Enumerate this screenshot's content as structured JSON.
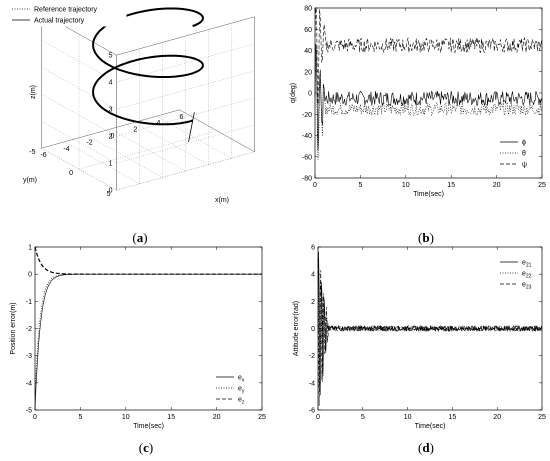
{
  "chart_data": [
    {
      "id": "a",
      "type": "line3d",
      "caption_open": "(",
      "caption_letter": "a",
      "caption_close": ")",
      "xlabel": "x(m)",
      "ylabel": "y(m)",
      "zlabel": "z(m)",
      "xticks": [
        "-6",
        "-4",
        "-2",
        "0",
        "2",
        "4",
        "6"
      ],
      "yticks": [
        "-5",
        "0",
        "5"
      ],
      "zticks": [
        "0",
        "1",
        "2",
        "3",
        "4",
        "5"
      ],
      "legend": [
        "Reference trajectory",
        "Actual trajectory"
      ],
      "legend_position": "top-left",
      "grid": true,
      "series": [
        {
          "name": "Reference trajectory",
          "style": "dotted",
          "description_points": "helix radius 5, z 0 to 5"
        },
        {
          "name": "Actual trajectory",
          "style": "solid"
        }
      ]
    },
    {
      "id": "b",
      "type": "line",
      "caption_open": "(",
      "caption_letter": "b",
      "caption_close": ")",
      "xlabel": "Time(sec)",
      "ylabel": "q(deg)",
      "xlim": [
        0,
        25
      ],
      "ylim": [
        -80,
        80
      ],
      "xticks": [
        "0",
        "5",
        "10",
        "15",
        "20",
        "25"
      ],
      "yticks": [
        "80",
        "60",
        "40",
        "20",
        "0",
        "-20",
        "-40",
        "-60",
        "-80"
      ],
      "legend": [
        "ϕ",
        "θ",
        "ψ"
      ],
      "legend_position": "bottom-right",
      "series": [
        {
          "name": "ϕ",
          "style": "solid",
          "mean": -5,
          "noise": 7
        },
        {
          "name": "θ",
          "style": "dotted",
          "mean": -15,
          "noise": 6
        },
        {
          "name": "ψ",
          "style": "dashed",
          "mean": 45,
          "noise": 7
        }
      ]
    },
    {
      "id": "c",
      "type": "line",
      "caption_open": "(",
      "caption_letter": "c",
      "caption_close": ")",
      "xlabel": "Time(sec)",
      "ylabel": "Position error(m)",
      "xlim": [
        0,
        25
      ],
      "ylim": [
        -5,
        1
      ],
      "xticks": [
        "0",
        "5",
        "10",
        "15",
        "20",
        "25"
      ],
      "yticks": [
        "1",
        "0",
        "-1",
        "-2",
        "-3",
        "-4",
        "-5"
      ],
      "legend": [
        "e",
        "e",
        "e"
      ],
      "legend_sub": [
        "x",
        "y",
        "z"
      ],
      "legend_position": "bottom-right",
      "series": [
        {
          "name": "ex",
          "style": "solid",
          "start": -5,
          "tau": 0.6
        },
        {
          "name": "ey",
          "style": "dotted",
          "start": -4.5,
          "tau": 0.55
        },
        {
          "name": "ez",
          "style": "dashed",
          "start": 1,
          "tau": 0.7
        }
      ]
    },
    {
      "id": "d",
      "type": "line",
      "caption_open": "(",
      "caption_letter": "d",
      "caption_close": ")",
      "xlabel": "Time(sec)",
      "ylabel": "Attitude error(rad)",
      "xlim": [
        0,
        25
      ],
      "ylim": [
        -6,
        6
      ],
      "xticks": [
        "0",
        "5",
        "10",
        "15",
        "20",
        "25"
      ],
      "yticks": [
        "6",
        "4",
        "2",
        "0",
        "-2",
        "-4",
        "-6"
      ],
      "legend": [
        "e",
        "e",
        "e"
      ],
      "legend_sub": [
        "21",
        "22",
        "23"
      ],
      "legend_position": "top-right",
      "series": [
        {
          "name": "e21",
          "style": "solid"
        },
        {
          "name": "e22",
          "style": "dotted"
        },
        {
          "name": "e23",
          "style": "dashed"
        }
      ]
    }
  ]
}
